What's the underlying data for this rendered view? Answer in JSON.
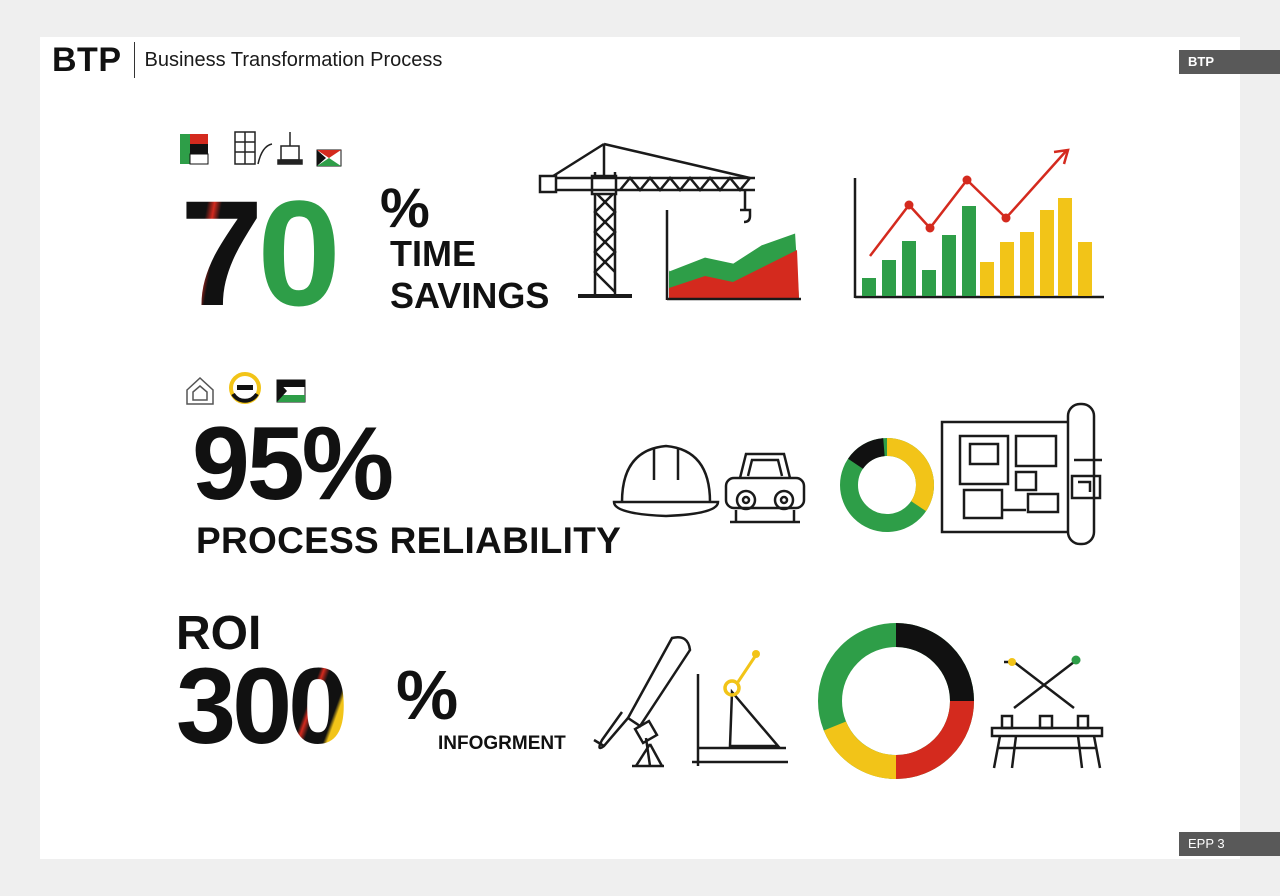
{
  "header": {
    "logo": "BTP",
    "subtitle": "Business Transformation Process",
    "tag_top": "BTP"
  },
  "footer": {
    "page_tag": "EPP 3"
  },
  "metrics": [
    {
      "value_digits": "70",
      "percent": "%",
      "label_line1": "TIME",
      "label_line2": "SAVINGS",
      "icons": [
        "flag-icon",
        "building-sketch-icon",
        "robot-arm-icon",
        "flag-icon",
        "crane-icon",
        "area-chart-icon",
        "bar-line-chart-icon"
      ]
    },
    {
      "value": "95%",
      "label": "PROCESS RELIABILITY",
      "icons": [
        "home-icon",
        "gear-icon",
        "flag-icon",
        "hard-hat-icon",
        "vehicle-icon",
        "donut-chart-icon",
        "blueprint-icon"
      ]
    },
    {
      "prefix": "ROI",
      "value_digits": "300",
      "percent": "%",
      "label": "INFOGRMENT",
      "icons": [
        "telescope-icon",
        "drafting-triangle-icon",
        "donut-chart-icon",
        "workbench-icon"
      ]
    }
  ],
  "colors": {
    "green": "#2e9e48",
    "red": "#d42a1e",
    "yellow": "#f2c418",
    "black": "#111111",
    "tag_gray": "#595959"
  }
}
